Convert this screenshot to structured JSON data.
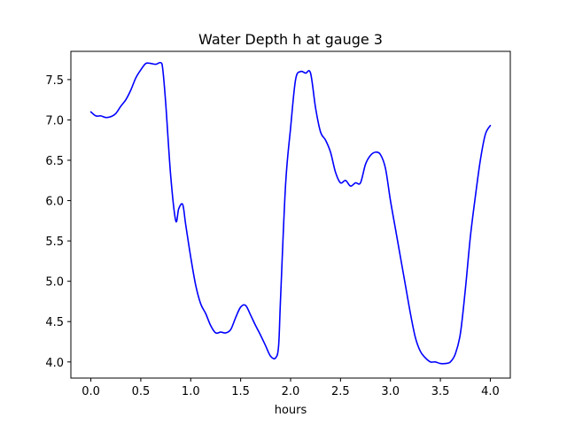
{
  "chart_data": {
    "type": "line",
    "title": "Water Depth h at gauge 3",
    "xlabel": "hours",
    "ylabel": "",
    "xlim": [
      -0.2,
      4.2
    ],
    "ylim": [
      3.8,
      7.85
    ],
    "xticks": [
      0.0,
      0.5,
      1.0,
      1.5,
      2.0,
      2.5,
      3.0,
      3.5,
      4.0
    ],
    "xtick_labels": [
      "0.0",
      "0.5",
      "1.0",
      "1.5",
      "2.0",
      "2.5",
      "3.0",
      "3.5",
      "4.0"
    ],
    "yticks": [
      4.0,
      4.5,
      5.0,
      5.5,
      6.0,
      6.5,
      7.0,
      7.5
    ],
    "ytick_labels": [
      "4.0",
      "4.5",
      "5.0",
      "5.5",
      "6.0",
      "6.5",
      "7.0",
      "7.5"
    ],
    "grid": false,
    "line_color": "#0000ff",
    "series": [
      {
        "x": [
          0.0,
          0.05,
          0.1,
          0.15,
          0.2,
          0.25,
          0.3,
          0.35,
          0.4,
          0.45,
          0.5,
          0.55,
          0.6,
          0.65,
          0.7,
          0.72,
          0.75,
          0.8,
          0.85,
          0.88,
          0.92,
          0.95,
          1.0,
          1.05,
          1.1,
          1.15,
          1.2,
          1.25,
          1.3,
          1.35,
          1.4,
          1.45,
          1.5,
          1.55,
          1.6,
          1.65,
          1.7,
          1.75,
          1.8,
          1.85,
          1.88,
          1.9,
          1.95,
          2.0,
          2.05,
          2.1,
          2.15,
          2.2,
          2.25,
          2.3,
          2.35,
          2.4,
          2.45,
          2.5,
          2.55,
          2.6,
          2.65,
          2.7,
          2.75,
          2.8,
          2.85,
          2.9,
          2.95,
          3.0,
          3.05,
          3.1,
          3.15,
          3.2,
          3.25,
          3.3,
          3.35,
          3.4,
          3.45,
          3.5,
          3.55,
          3.6,
          3.65,
          3.7,
          3.75,
          3.8,
          3.85,
          3.9,
          3.95,
          4.0
        ],
        "y": [
          7.1,
          7.05,
          7.05,
          7.03,
          7.04,
          7.08,
          7.17,
          7.25,
          7.37,
          7.52,
          7.62,
          7.7,
          7.7,
          7.69,
          7.71,
          7.63,
          7.2,
          6.3,
          5.75,
          5.9,
          5.95,
          5.7,
          5.3,
          4.95,
          4.72,
          4.6,
          4.45,
          4.36,
          4.37,
          4.36,
          4.4,
          4.55,
          4.68,
          4.7,
          4.58,
          4.45,
          4.33,
          4.2,
          4.07,
          4.05,
          4.2,
          4.8,
          6.2,
          6.9,
          7.5,
          7.6,
          7.58,
          7.58,
          7.15,
          6.85,
          6.75,
          6.6,
          6.35,
          6.22,
          6.25,
          6.18,
          6.22,
          6.22,
          6.45,
          6.56,
          6.6,
          6.57,
          6.4,
          6.0,
          5.65,
          5.3,
          4.95,
          4.6,
          4.3,
          4.13,
          4.05,
          4.0,
          4.0,
          3.98,
          3.98,
          4.0,
          4.1,
          4.35,
          4.9,
          5.55,
          6.05,
          6.5,
          6.82,
          6.93
        ]
      }
    ]
  }
}
